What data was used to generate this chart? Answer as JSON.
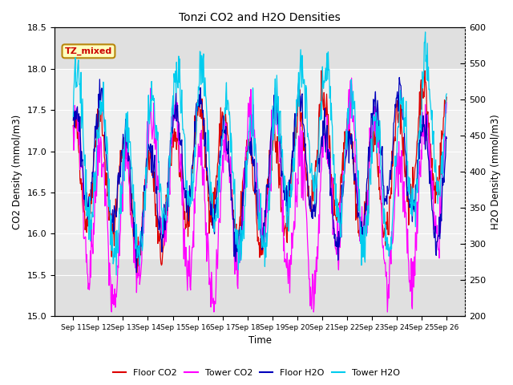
{
  "title": "Tonzi CO2 and H2O Densities",
  "xlabel": "Time",
  "ylabel_left": "CO2 Density (mmol/m3)",
  "ylabel_right": "H2O Density (mmol/m3)",
  "annotation": "TZ_mixed",
  "ylim_left": [
    15.0,
    18.5
  ],
  "ylim_right": [
    200,
    600
  ],
  "yticks_left": [
    15.0,
    15.5,
    16.0,
    16.5,
    17.0,
    17.5,
    18.0,
    18.5
  ],
  "yticks_right": [
    200,
    250,
    300,
    350,
    400,
    450,
    500,
    550,
    600
  ],
  "xtick_labels": [
    "Sep 11",
    "Sep 12",
    "Sep 13",
    "Sep 14",
    "Sep 15",
    "Sep 16",
    "Sep 17",
    "Sep 18",
    "Sep 19",
    "Sep 20",
    "Sep 21",
    "Sep 22",
    "Sep 23",
    "Sep 24",
    "Sep 25",
    "Sep 26"
  ],
  "colors": {
    "floor_co2": "#DD0000",
    "tower_co2": "#FF00FF",
    "floor_h2o": "#0000BB",
    "tower_h2o": "#00CCEE"
  },
  "legend_labels": [
    "Floor CO2",
    "Tower CO2",
    "Floor H2O",
    "Tower H2O"
  ],
  "background_shade_ylim": [
    15.7,
    18.0
  ],
  "seed": 42
}
